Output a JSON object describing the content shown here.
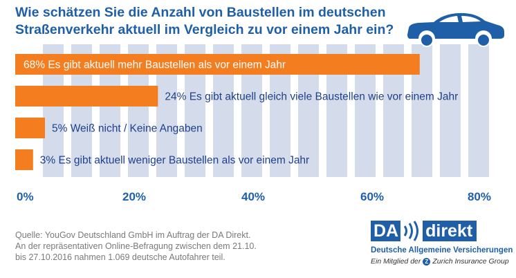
{
  "title_lines": [
    "Wie schätzen Sie die Anzahl von Baustellen im deutschen",
    "Straßenverkehr aktuell im Vergleich zu vor einem Jahr ein?"
  ],
  "colors": {
    "bar": "#f47d20",
    "brand_blue": "#1e5fa8",
    "grid_stripe": "#d4dcec",
    "label_inside": "#ffffff",
    "label_outside": "#1e3f8a"
  },
  "icons": [
    "car-icon",
    "logo-waves-icon",
    "zurich-icon"
  ],
  "chart_data": {
    "type": "bar",
    "orientation": "horizontal",
    "title": "Wie schätzen Sie die Anzahl von Baustellen im deutschen Straßenverkehr aktuell im Vergleich zu vor einem Jahr ein?",
    "categories": [
      "Es gibt aktuell mehr Baustellen als vor einem Jahr",
      "Es gibt aktuell gleich viele Baustellen wie vor einem Jahr",
      "Weiß nicht / Keine Angaben",
      "Es gibt aktuell weniger Baustellen als vor einem Jahr"
    ],
    "values": [
      68,
      24,
      5,
      3
    ],
    "value_labels": [
      "68%",
      "24%",
      "5%",
      "3%"
    ],
    "xlim": [
      0,
      80
    ],
    "xticks": [
      0,
      20,
      40,
      60,
      80
    ],
    "xtick_labels": [
      "0%",
      "20%",
      "40%",
      "60%",
      "80%"
    ],
    "xlabel": "",
    "ylabel": "",
    "grid": true
  },
  "source_lines": [
    "Quelle: YouGov Deutschland GmbH im Auftrag der DA Direkt.",
    "An der repräsentativen Online-Befragung zwischen dem 21.10.",
    "bis 27.10.2016 nahmen 1.069 deutsche Autofahrer teil."
  ],
  "logo": {
    "brand_left": "DA",
    "brand_right": "direkt",
    "subtitle": "Deutsche Allgemeine Versicherungen",
    "member_prefix": "Ein Mitglied der",
    "member_icon_letter": "Z",
    "member_suffix": "Zurich Insurance Group"
  }
}
